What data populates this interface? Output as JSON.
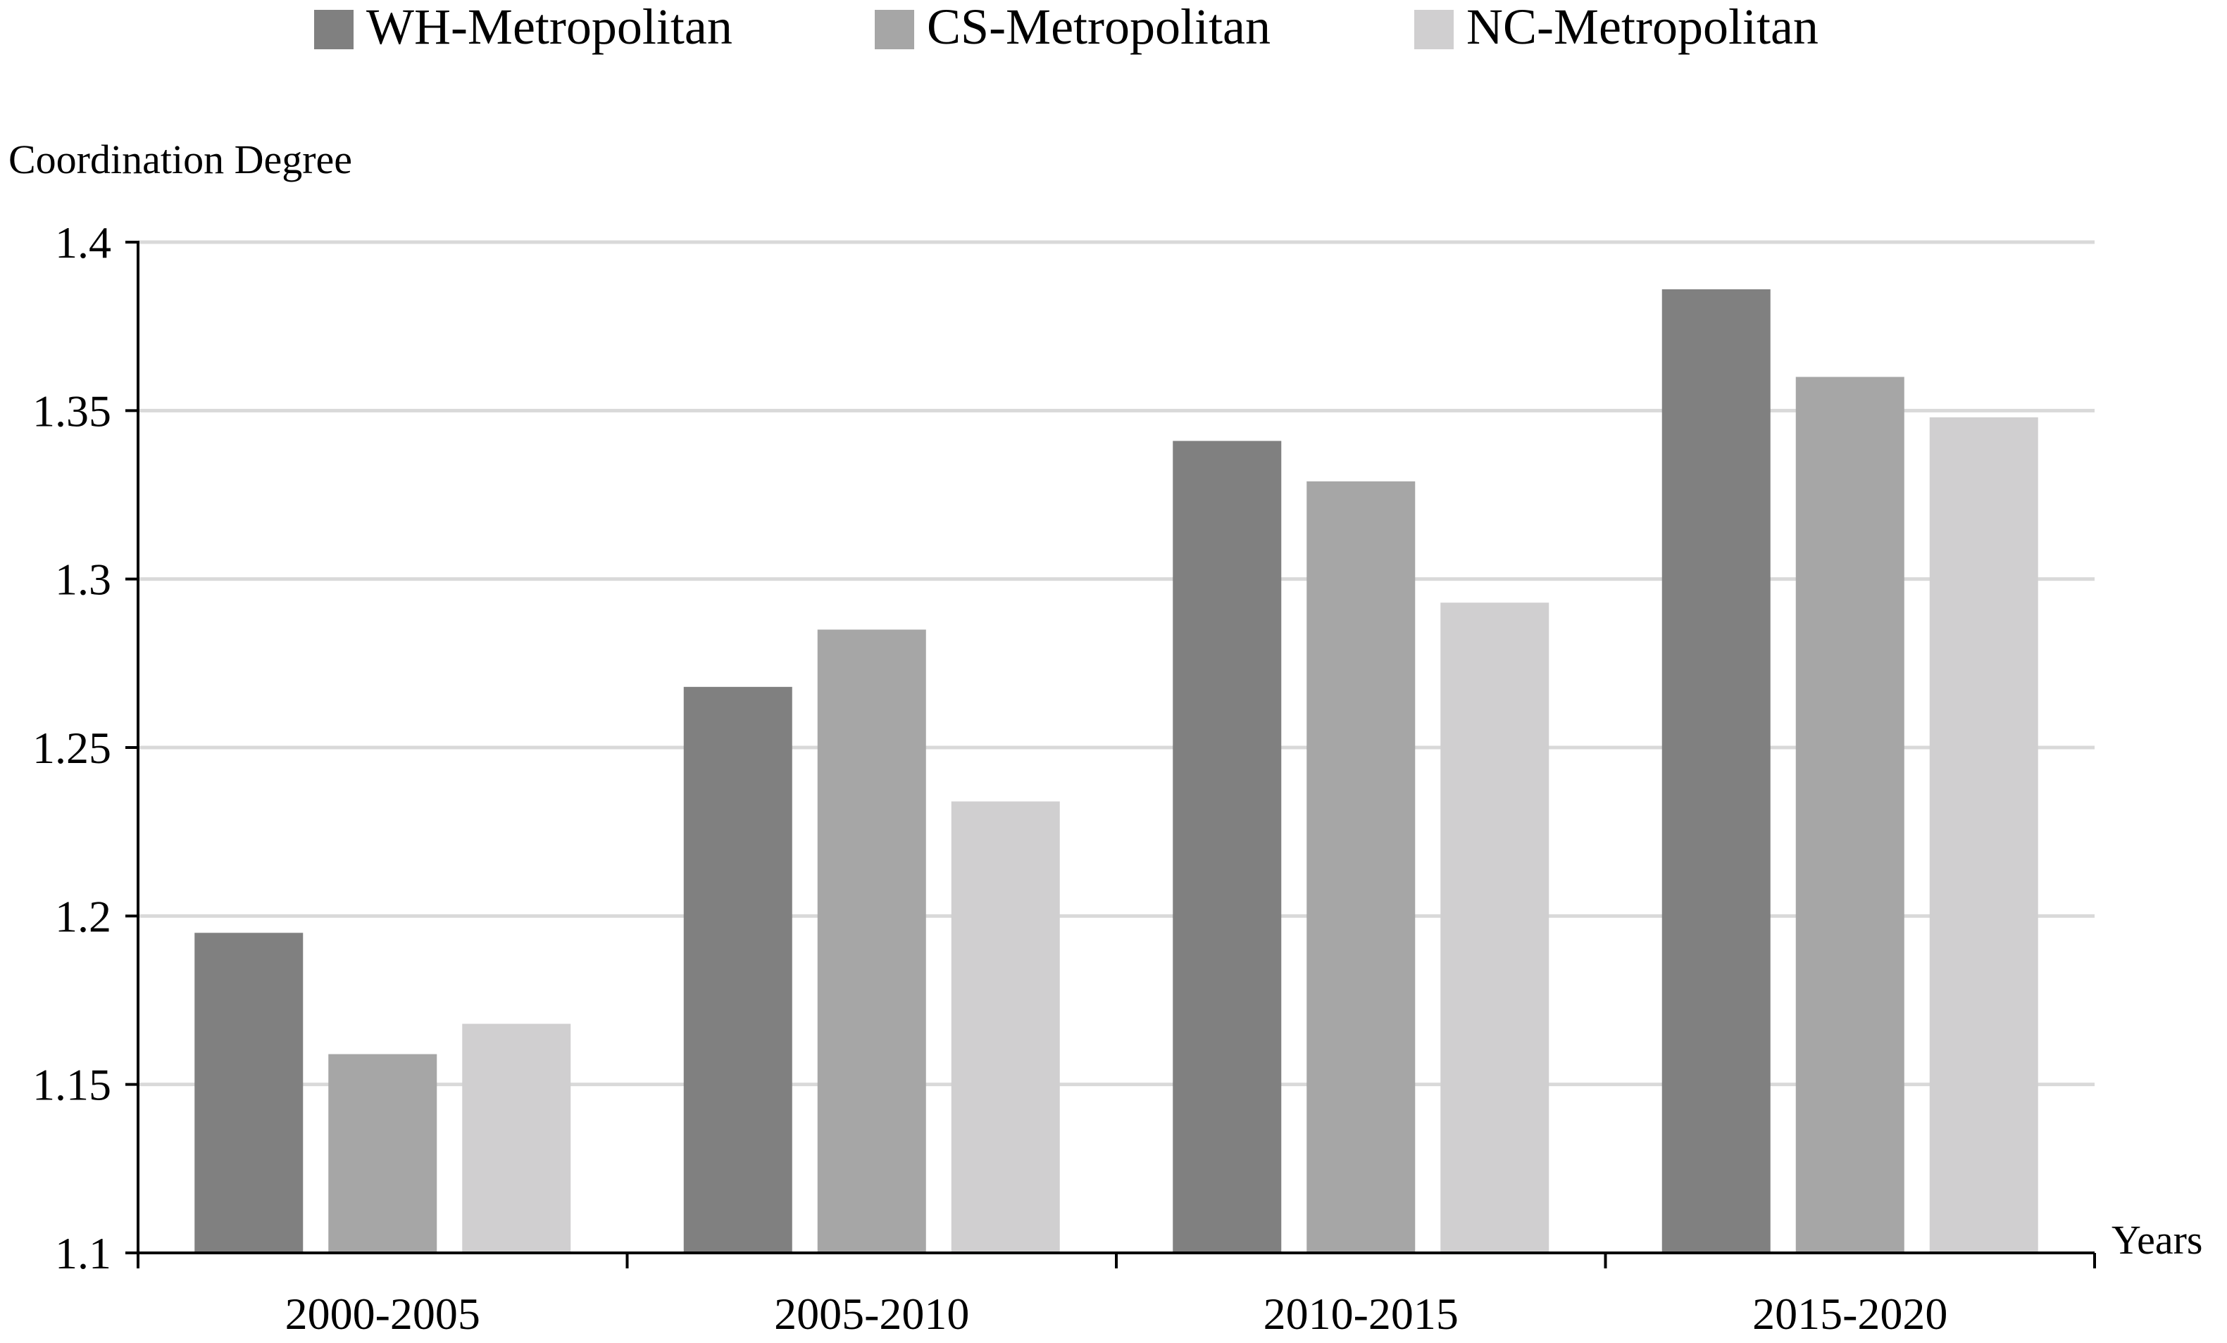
{
  "chart_data": {
    "type": "bar",
    "title": "",
    "xlabel": "Years",
    "ylabel": "Coordination Degree",
    "categories": [
      "2000-2005",
      "2005-2010",
      "2010-2015",
      "2015-2020"
    ],
    "series": [
      {
        "name": "WH-Metropolitan",
        "color": "#808080",
        "values": [
          1.195,
          1.268,
          1.341,
          1.386
        ]
      },
      {
        "name": "CS-Metropolitan",
        "color": "#a6a6a6",
        "values": [
          1.159,
          1.285,
          1.329,
          1.36
        ]
      },
      {
        "name": "NC-Metropolitan",
        "color": "#d0cfd0",
        "values": [
          1.168,
          1.234,
          1.293,
          1.348
        ]
      }
    ],
    "ylim": [
      1.1,
      1.4
    ],
    "yticks": [
      "1.1",
      "1.15",
      "1.2",
      "1.25",
      "1.3",
      "1.35",
      "1.4"
    ],
    "grid": true,
    "legend_position": "top"
  }
}
